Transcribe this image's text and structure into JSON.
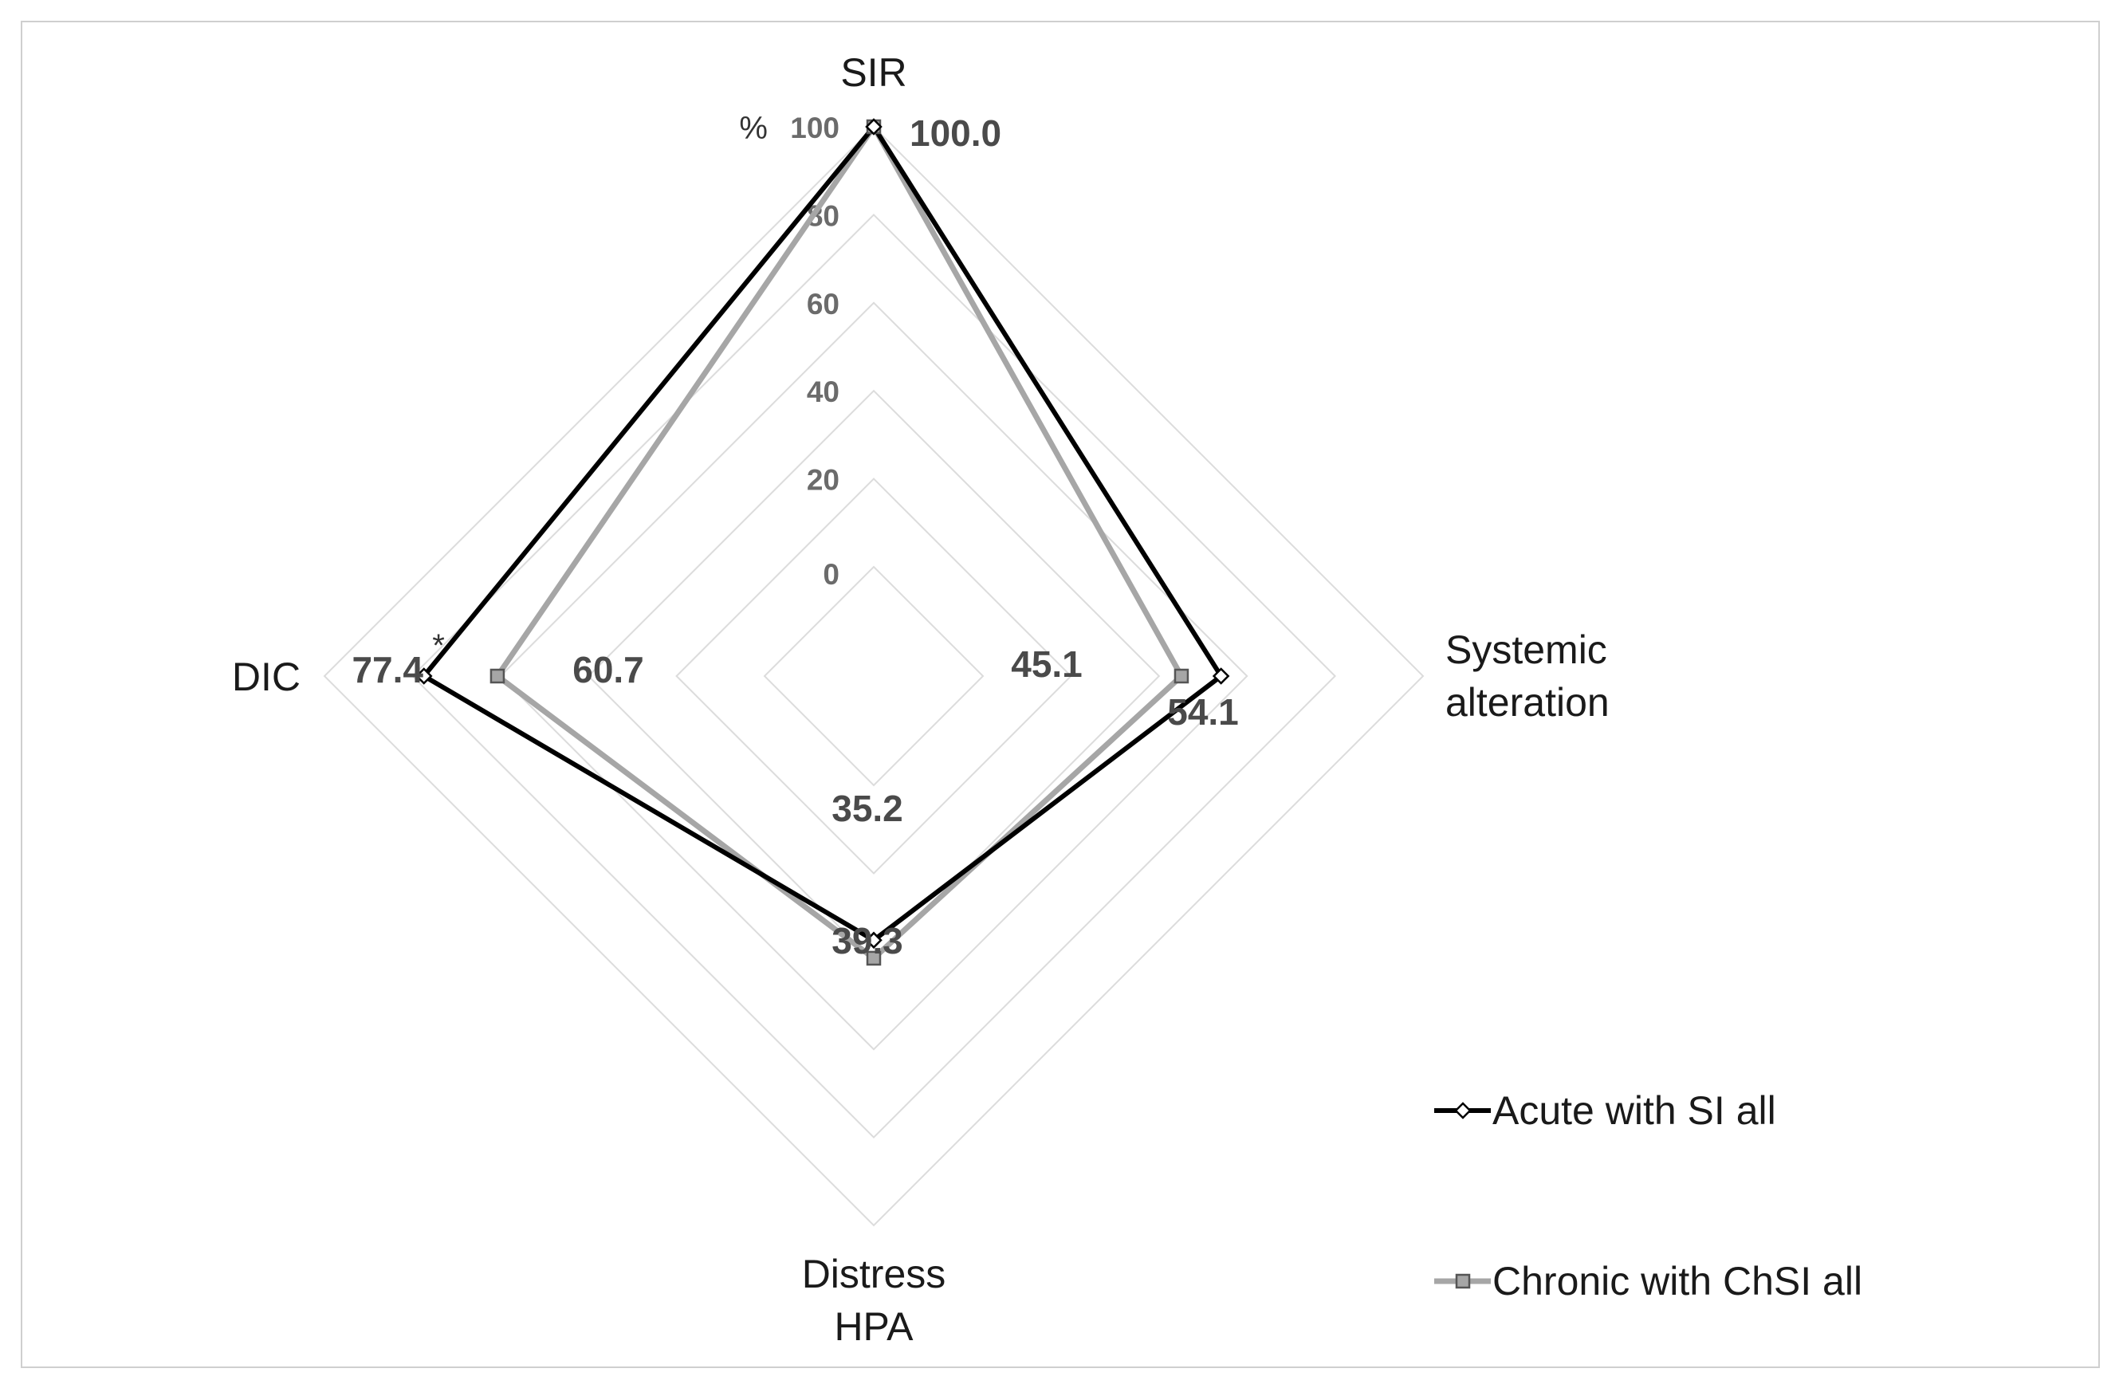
{
  "chart_data": {
    "type": "radar",
    "axes": [
      {
        "label": [
          "SIR"
        ]
      },
      {
        "label": [
          "Systemic",
          "alteration"
        ]
      },
      {
        "label": [
          "Distress",
          "HPA"
        ]
      },
      {
        "label": [
          "DIC"
        ]
      }
    ],
    "r_range": [
      0,
      100
    ],
    "ticks": [
      "0",
      "20",
      "40",
      "60",
      "80",
      "100"
    ],
    "unit": "%",
    "grid": true,
    "legend_position": "bottom-right",
    "series": [
      {
        "name": "Acute with SI all",
        "color": "#000000",
        "marker": "diamond",
        "values": [
          100.0,
          54.1,
          35.2,
          77.4
        ],
        "labels": [
          "100.0",
          "54.1",
          "35.2",
          "77.4"
        ]
      },
      {
        "name": "Chronic with ChSI all",
        "color": "#a6a6a6",
        "marker": "square",
        "values": [
          100.0,
          45.1,
          39.3,
          60.7
        ],
        "labels": [
          "",
          "45.1",
          "39.3",
          "60.7"
        ]
      }
    ],
    "annotations": [
      {
        "text": "*"
      }
    ]
  }
}
